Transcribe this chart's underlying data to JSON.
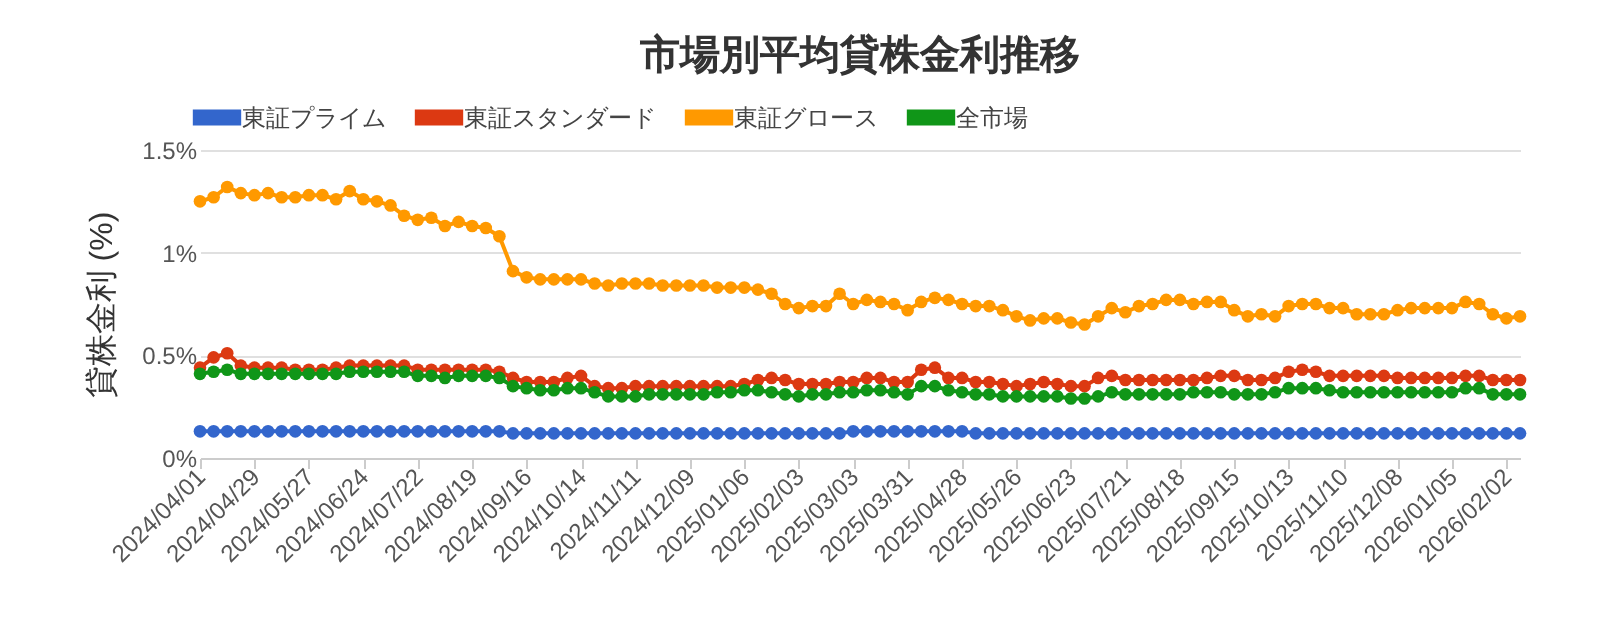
{
  "chart_data": {
    "type": "line",
    "title": "市場別平均貸株金利推移",
    "ylabel": "貸株金利 (%)",
    "categories": [
      "2024/04/01",
      null,
      null,
      null,
      "2024/04/29",
      null,
      null,
      null,
      "2024/05/27",
      null,
      null,
      null,
      "2024/06/24",
      null,
      null,
      null,
      "2024/07/22",
      null,
      null,
      null,
      "2024/08/19",
      null,
      null,
      null,
      "2024/09/16",
      null,
      null,
      null,
      "2024/10/14",
      null,
      null,
      null,
      "2024/11/11",
      null,
      null,
      null,
      "2024/12/09",
      null,
      null,
      null,
      "2025/01/06",
      null,
      null,
      null,
      "2025/02/03",
      null,
      null,
      null,
      "2025/03/03",
      null,
      null,
      null,
      "2025/03/31",
      null,
      null,
      null,
      "2025/04/28",
      null,
      null,
      null,
      "2025/05/26",
      null,
      null,
      null,
      "2025/06/23",
      null,
      null,
      null,
      "2025/07/21",
      null,
      null,
      null,
      "2025/08/18",
      null,
      null,
      null,
      "2025/09/15",
      null,
      null,
      null,
      "2025/10/13",
      null,
      null,
      null,
      "2025/11/10",
      null,
      null,
      null,
      "2025/12/08",
      null,
      null,
      null,
      "2026/01/05",
      null,
      null,
      null,
      "2026/02/02",
      null
    ],
    "series": [
      {
        "name": "東証プライム",
        "color": "#3366cc",
        "values": [
          0.13,
          0.13,
          0.13,
          0.13,
          0.13,
          0.13,
          0.13,
          0.13,
          0.13,
          0.13,
          0.13,
          0.13,
          0.13,
          0.13,
          0.13,
          0.13,
          0.13,
          0.13,
          0.13,
          0.13,
          0.13,
          0.13,
          0.13,
          0.12,
          0.12,
          0.12,
          0.12,
          0.12,
          0.12,
          0.12,
          0.12,
          0.12,
          0.12,
          0.12,
          0.12,
          0.12,
          0.12,
          0.12,
          0.12,
          0.12,
          0.12,
          0.12,
          0.12,
          0.12,
          0.12,
          0.12,
          0.12,
          0.12,
          0.13,
          0.13,
          0.13,
          0.13,
          0.13,
          0.13,
          0.13,
          0.13,
          0.13,
          0.12,
          0.12,
          0.12,
          0.12,
          0.12,
          0.12,
          0.12,
          0.12,
          0.12,
          0.12,
          0.12,
          0.12,
          0.12,
          0.12,
          0.12,
          0.12,
          0.12,
          0.12,
          0.12,
          0.12,
          0.12,
          0.12,
          0.12,
          0.12,
          0.12,
          0.12,
          0.12,
          0.12,
          0.12,
          0.12,
          0.12,
          0.12,
          0.12,
          0.12,
          0.12,
          0.12,
          0.12,
          0.12,
          0.12,
          0.12,
          0.12
        ]
      },
      {
        "name": "東証スタンダード",
        "color": "#dc3912",
        "values": [
          0.44,
          0.49,
          0.51,
          0.45,
          0.44,
          0.44,
          0.44,
          0.43,
          0.43,
          0.43,
          0.44,
          0.45,
          0.45,
          0.45,
          0.45,
          0.45,
          0.43,
          0.43,
          0.43,
          0.43,
          0.43,
          0.43,
          0.42,
          0.39,
          0.37,
          0.37,
          0.37,
          0.39,
          0.4,
          0.35,
          0.34,
          0.34,
          0.35,
          0.35,
          0.35,
          0.35,
          0.35,
          0.35,
          0.35,
          0.35,
          0.36,
          0.38,
          0.39,
          0.38,
          0.36,
          0.36,
          0.36,
          0.37,
          0.37,
          0.39,
          0.39,
          0.37,
          0.37,
          0.43,
          0.44,
          0.39,
          0.39,
          0.37,
          0.37,
          0.36,
          0.35,
          0.36,
          0.37,
          0.36,
          0.35,
          0.35,
          0.39,
          0.4,
          0.38,
          0.38,
          0.38,
          0.38,
          0.38,
          0.38,
          0.39,
          0.4,
          0.4,
          0.38,
          0.38,
          0.39,
          0.42,
          0.43,
          0.42,
          0.4,
          0.4,
          0.4,
          0.4,
          0.4,
          0.39,
          0.39,
          0.39,
          0.39,
          0.39,
          0.4,
          0.4,
          0.38,
          0.38,
          0.38
        ]
      },
      {
        "name": "東証グロース",
        "color": "#ff9900",
        "values": [
          1.25,
          1.27,
          1.32,
          1.29,
          1.28,
          1.29,
          1.27,
          1.27,
          1.28,
          1.28,
          1.26,
          1.3,
          1.26,
          1.25,
          1.23,
          1.18,
          1.16,
          1.17,
          1.13,
          1.15,
          1.13,
          1.12,
          1.08,
          0.91,
          0.88,
          0.87,
          0.87,
          0.87,
          0.87,
          0.85,
          0.84,
          0.85,
          0.85,
          0.85,
          0.84,
          0.84,
          0.84,
          0.84,
          0.83,
          0.83,
          0.83,
          0.82,
          0.8,
          0.75,
          0.73,
          0.74,
          0.74,
          0.8,
          0.75,
          0.77,
          0.76,
          0.75,
          0.72,
          0.76,
          0.78,
          0.77,
          0.75,
          0.74,
          0.74,
          0.72,
          0.69,
          0.67,
          0.68,
          0.68,
          0.66,
          0.65,
          0.69,
          0.73,
          0.71,
          0.74,
          0.75,
          0.77,
          0.77,
          0.75,
          0.76,
          0.76,
          0.72,
          0.69,
          0.7,
          0.69,
          0.74,
          0.75,
          0.75,
          0.73,
          0.73,
          0.7,
          0.7,
          0.7,
          0.72,
          0.73,
          0.73,
          0.73,
          0.73,
          0.76,
          0.75,
          0.7,
          0.68,
          0.69
        ]
      },
      {
        "name": "全市場",
        "color": "#109618",
        "values": [
          0.41,
          0.42,
          0.43,
          0.41,
          0.41,
          0.41,
          0.41,
          0.41,
          0.41,
          0.41,
          0.41,
          0.42,
          0.42,
          0.42,
          0.42,
          0.42,
          0.4,
          0.4,
          0.39,
          0.4,
          0.4,
          0.4,
          0.39,
          0.35,
          0.34,
          0.33,
          0.33,
          0.34,
          0.34,
          0.32,
          0.3,
          0.3,
          0.3,
          0.31,
          0.31,
          0.31,
          0.31,
          0.31,
          0.32,
          0.32,
          0.33,
          0.33,
          0.32,
          0.31,
          0.3,
          0.31,
          0.31,
          0.32,
          0.32,
          0.33,
          0.33,
          0.32,
          0.31,
          0.35,
          0.35,
          0.33,
          0.32,
          0.31,
          0.31,
          0.3,
          0.3,
          0.3,
          0.3,
          0.3,
          0.29,
          0.29,
          0.3,
          0.32,
          0.31,
          0.31,
          0.31,
          0.31,
          0.31,
          0.32,
          0.32,
          0.32,
          0.31,
          0.31,
          0.31,
          0.32,
          0.34,
          0.34,
          0.34,
          0.33,
          0.32,
          0.32,
          0.32,
          0.32,
          0.32,
          0.32,
          0.32,
          0.32,
          0.32,
          0.34,
          0.34,
          0.31,
          0.31,
          0.31
        ]
      }
    ],
    "ylim": [
      0,
      1.5
    ],
    "yticks": [
      {
        "value": 0,
        "label": "0%"
      },
      {
        "value": 0.5,
        "label": "0.5%"
      },
      {
        "value": 1,
        "label": "1%"
      },
      {
        "value": 1.5,
        "label": "1.5%"
      }
    ],
    "grid": "y",
    "legend": "top",
    "marker": "circle",
    "line_style": "solid"
  }
}
